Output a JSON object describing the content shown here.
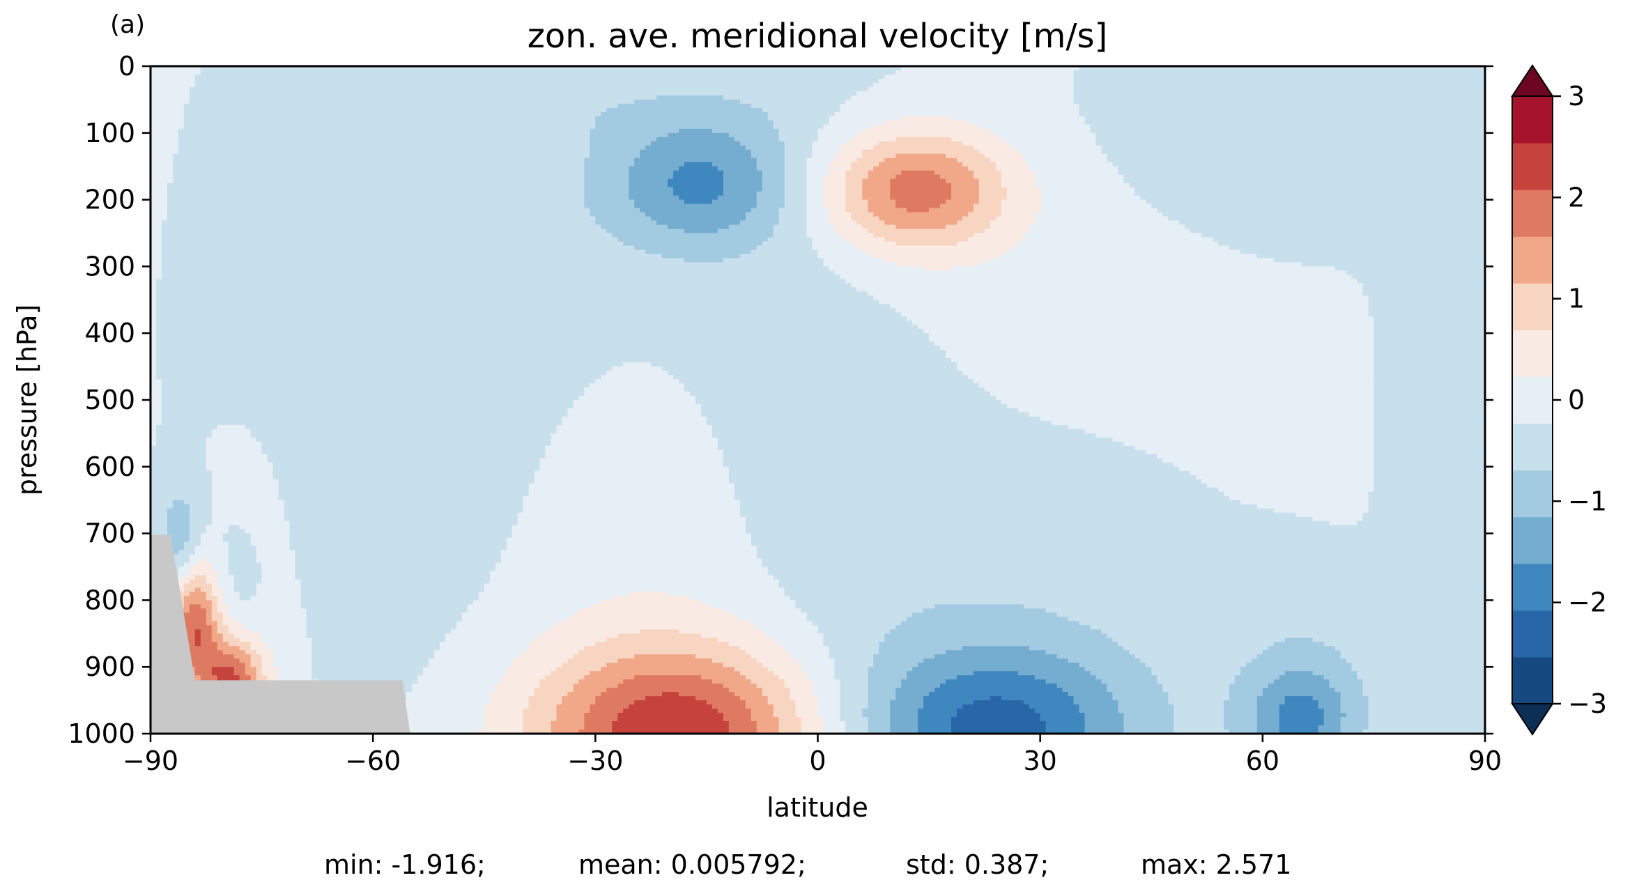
{
  "chart_data": {
    "type": "heatmap",
    "panel_label": "(a)",
    "title": "zon. ave. meridional velocity [m/s]",
    "xlabel": "latitude",
    "ylabel": "pressure [hPa]",
    "xlim": [
      -90,
      90
    ],
    "ylim": [
      1000,
      0
    ],
    "y_inverted": true,
    "x_ticks": [
      -90,
      -60,
      -30,
      0,
      30,
      60,
      90
    ],
    "x_tick_labels": [
      "−90",
      "−60",
      "−30",
      "0",
      "30",
      "60",
      "90"
    ],
    "y_ticks": [
      0,
      100,
      200,
      300,
      400,
      500,
      600,
      700,
      800,
      900,
      1000
    ],
    "y_tick_labels": [
      "0",
      "100",
      "200",
      "300",
      "400",
      "500",
      "600",
      "700",
      "800",
      "900",
      "1000"
    ],
    "grid": false,
    "colorbar": {
      "levels": [
        -3,
        -2.5,
        -2,
        -1.5,
        -1,
        -0.5,
        0,
        0.5,
        1,
        1.5,
        2,
        2.5,
        3
      ],
      "colors": [
        "#15497f",
        "#2866a8",
        "#3f87bf",
        "#74adcf",
        "#a2cbe1",
        "#c8dfec",
        "#e6eff5",
        "#f9ebe3",
        "#f8d5c1",
        "#f1a888",
        "#df7a62",
        "#c6423d",
        "#a5132c"
      ],
      "extend_colors": {
        "under": "#0d2f56",
        "over": "#6d0620"
      },
      "tick_values": [
        -3,
        -2,
        -1,
        0,
        1,
        2,
        3
      ],
      "tick_labels": [
        "−3",
        "−2",
        "−1",
        "0",
        "1",
        "2",
        "3"
      ]
    },
    "features": [
      {
        "name": "upper-tropical-negative",
        "lat": -16,
        "p": 175,
        "peak": -1.4
      },
      {
        "name": "upper-tropical-positive",
        "lat": 13,
        "p": 185,
        "peak": 2.1
      },
      {
        "name": "low-level-southern-positive",
        "lat": -18,
        "p": 995,
        "peak": 2.6
      },
      {
        "name": "low-level-northern-negative",
        "lat": 24,
        "p": 990,
        "peak": -1.9
      },
      {
        "name": "antarctic-slope-positive",
        "lat": -84,
        "p": 830,
        "peak": 2.5
      },
      {
        "name": "antarctic-positive-2",
        "lat": -79,
        "p": 920,
        "peak": 2.3
      },
      {
        "name": "arctic-low-negative",
        "lat": 65,
        "p": 970,
        "peak": -1.4
      },
      {
        "name": "surface-topography",
        "color": "#c8c8c8"
      }
    ],
    "stats": {
      "min": "min: -1.916;",
      "mean": "mean: 0.005792;",
      "std": "std: 0.387;",
      "max": "max: 2.571"
    }
  }
}
